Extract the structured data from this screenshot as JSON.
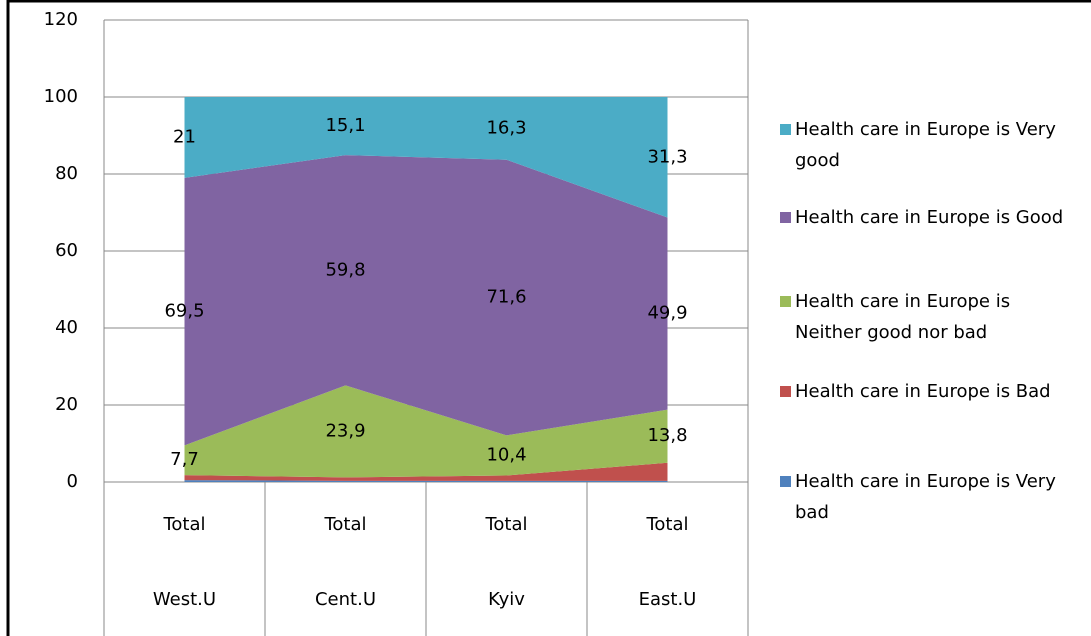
{
  "chart_data": {
    "type": "stacked-area",
    "categories": [
      "West.U",
      "Cent.U",
      "Kyiv",
      "East.U"
    ],
    "category_level": [
      "Total",
      "Total",
      "Total",
      "Total"
    ],
    "series": [
      {
        "name": "Health care in Europe is Very good",
        "color": "#4bacc6",
        "values": [
          21,
          15.1,
          16.3,
          31.3
        ],
        "value_labels": [
          "21",
          "15,1",
          "16,3",
          "31,3"
        ]
      },
      {
        "name": "Health care in Europe is Good",
        "color": "#8064a2",
        "values": [
          69.5,
          59.8,
          71.6,
          49.9
        ],
        "value_labels": [
          "69,5",
          "59,8",
          "71,6",
          "49,9"
        ]
      },
      {
        "name": "Health care in Europe is Neither good nor bad",
        "color": "#9bbb59",
        "values": [
          7.7,
          23.9,
          10.4,
          13.8
        ],
        "value_labels": [
          "7,7",
          "23,9",
          "10,4",
          "13,8"
        ]
      },
      {
        "name": "Health care in Europe is Bad",
        "color": "#c0504d",
        "values": [
          1.3,
          0.9,
          1.4,
          4.7
        ]
      },
      {
        "name": "Health care in Europe is Very bad",
        "color": "#4f81bd",
        "values": [
          0.5,
          0.3,
          0.3,
          0.3
        ]
      }
    ],
    "ylim": [
      0,
      120
    ],
    "yticks": [
      0,
      20,
      40,
      60,
      80,
      100,
      120
    ],
    "grid": true
  }
}
